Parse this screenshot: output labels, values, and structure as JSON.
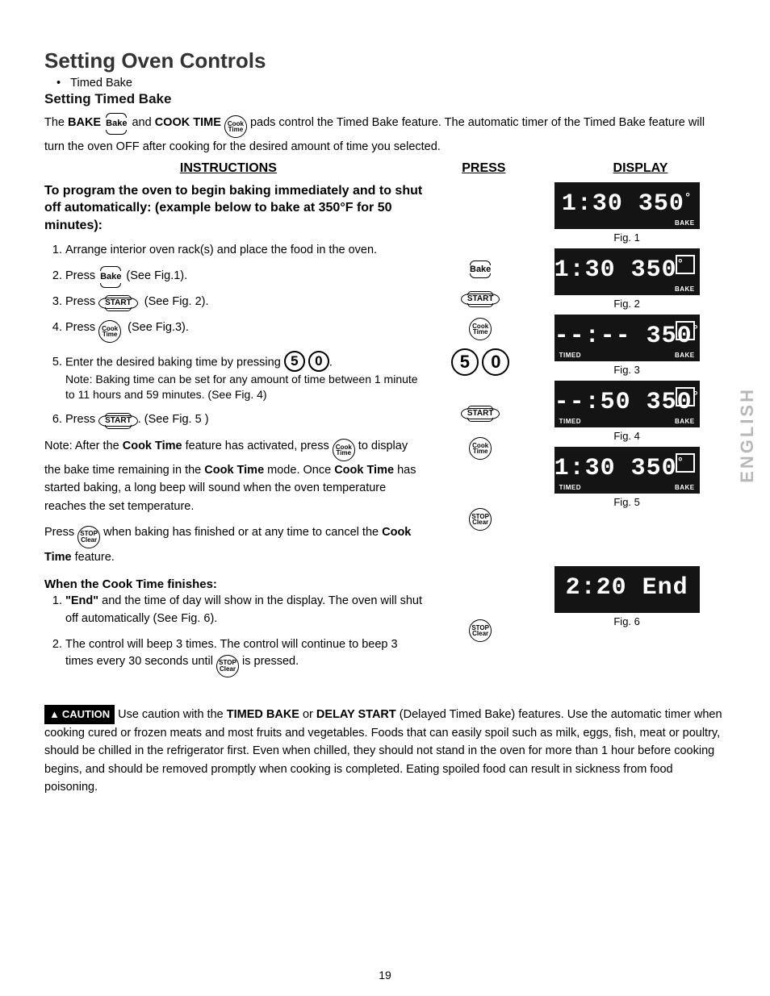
{
  "title": "Setting Oven Controls",
  "bullet": "Timed Bake",
  "subtitle": "Setting Timed Bake",
  "intro_pre": "The ",
  "intro_bake": "BAKE",
  "intro_mid1": " and ",
  "intro_cook": "COOK TIME",
  "intro_post": " pads control the Timed Bake feature. The automatic timer of the Timed Bake feature will turn the oven OFF after cooking for the desired amount of time you selected.",
  "headers": {
    "instructions": "INSTRUCTIONS",
    "press": "PRESS",
    "display": "DISPLAY"
  },
  "program_intro": "To program the oven to begin baking immediately and to shut off automatically: (example below to bake at 350°F for 50 minutes):",
  "steps": {
    "s1": "Arrange interior oven rack(s) and place the food in the oven.",
    "s2_pre": "Press ",
    "s2_post": " (See Fig.1).",
    "s3_pre": "Press ",
    "s3_post": " (See Fig. 2).",
    "s4_pre": "Press ",
    "s4_post": " (See Fig.3).",
    "s5_pre": "Enter the desired baking time by pressing ",
    "s5_post": ".",
    "s5_note": "Note: Baking time can be set for any amount of time between 1 minute to 11 hours and 59 minutes. (See Fig. 4)",
    "s6_pre": "Press ",
    "s6_post": ". (See Fig. 5 )"
  },
  "note2_pre": "Note: After the ",
  "note2_ct": "Cook Time",
  "note2_mid": " feature has activated, press ",
  "note2_post": " to display the bake time remaining in the ",
  "note2_ct2": "Cook Time",
  "note2_mode": " mode. Once ",
  "note2_ct3": "Cook Time",
  "note2_end": " has started baking, a long beep will sound when the oven temperature reaches the set temperature.",
  "press_stop_pre": "Press ",
  "press_stop_mid": " when baking has finished or at any time to cancel the ",
  "press_stop_ct": "Cook Time",
  "press_stop_end": " feature.",
  "finishes_h": "When the Cook Time finishes:",
  "fin1_pre": "\"End\"",
  "fin1_post": " and the time of day will show in the display. The oven will shut off automatically (See Fig. 6).",
  "fin2_pre": "The control will beep 3 times. The control will continue to beep 3 times every 30 seconds until ",
  "fin2_post": " is pressed.",
  "btn": {
    "bake": "Bake",
    "start": "START",
    "cooktime": "Cook\nTime",
    "stopclear": "STOP\nClear",
    "five": "5",
    "zero": "0"
  },
  "displays": {
    "d1": "1:30 350",
    "d1_label": "BAKE",
    "d2": "1:30 350",
    "d2_label": "BAKE",
    "d3": "--:-- 350",
    "d3_label_r": "BAKE",
    "d3_label_l": "TIMED",
    "d4": "--:50 350",
    "d4_label_r": "BAKE",
    "d4_label_l": "TIMED",
    "d5": "1:30 350",
    "d5_label_r": "BAKE",
    "d5_label_l": "TIMED",
    "d6": "2:20 End"
  },
  "fig_caps": {
    "f1": "Fig. 1",
    "f2": "Fig. 2",
    "f3": "Fig. 3",
    "f4": "Fig. 4",
    "f5": "Fig. 5",
    "f6": "Fig. 6"
  },
  "caution_badge": "CAUTION",
  "caution_pre": " Use caution with the ",
  "caution_tb": "TIMED BAKE",
  "caution_or": " or ",
  "caution_ds": "DELAY START",
  "caution_post": " (Delayed Timed Bake) features. Use the automatic timer when cooking cured or frozen meats and most fruits and vegetables. Foods that can easily spoil such as milk, eggs, fish, meat or poultry, should be chilled in the refrigerator first. Even when chilled, they should not stand in the oven for more than 1 hour before cooking begins, and should be removed promptly when cooking is completed. Eating spoiled food can result in sickness from food poisoning.",
  "side": "ENGLISH",
  "page_num": "19"
}
